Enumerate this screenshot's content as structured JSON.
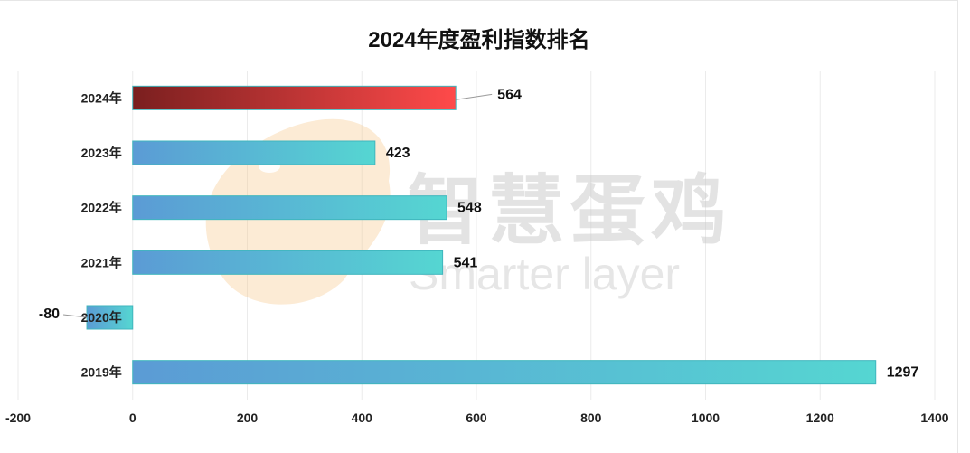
{
  "chart_data": {
    "type": "bar",
    "orientation": "horizontal",
    "title": "2024年度盈利指数排名",
    "categories": [
      "2024年",
      "2023年",
      "2022年",
      "2021年",
      "2020年",
      "2019年"
    ],
    "values": [
      564,
      423,
      548,
      541,
      -80,
      1297
    ],
    "xlim": [
      -200,
      1400
    ],
    "x_ticks": [
      -200,
      0,
      200,
      400,
      600,
      800,
      1000,
      1200,
      1400
    ],
    "xlabel": "",
    "ylabel": "",
    "grid": true,
    "legend": "none",
    "highlight_category": "2024年",
    "colors": {
      "highlight_start": "#7a1f1f",
      "highlight_end": "#ff4a4a",
      "bar_start": "#5b9bd5",
      "bar_end": "#55d6d2",
      "bar_stroke": "#3fb6bd",
      "grid": "#ebebeb"
    }
  },
  "watermark": {
    "cn": "智慧蛋鸡",
    "en": "Smarter layer"
  }
}
